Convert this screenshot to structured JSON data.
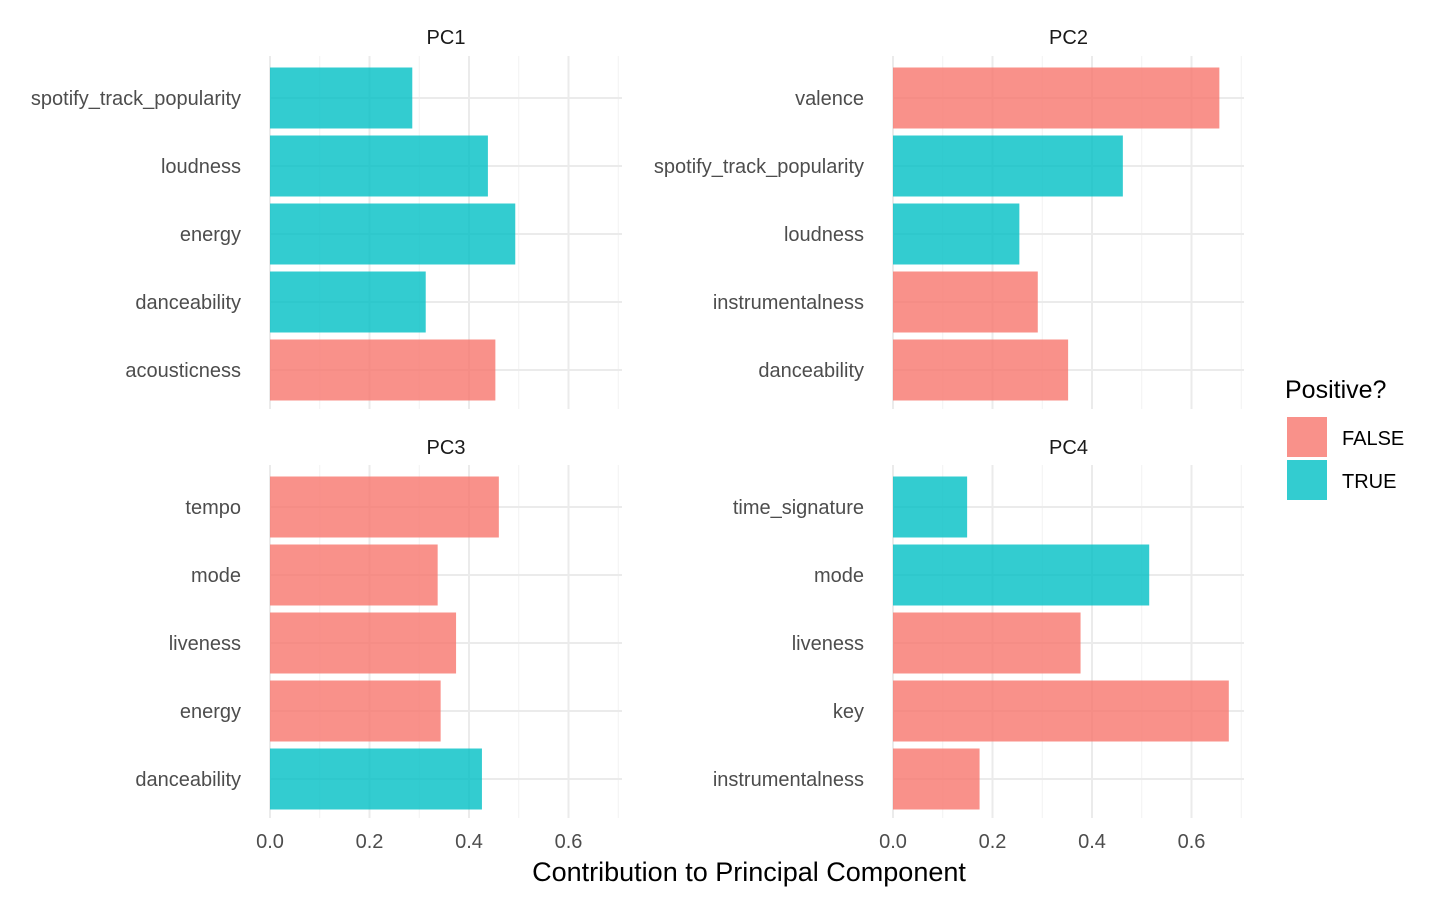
{
  "chart_data": {
    "type": "bar",
    "orientation": "horizontal",
    "xlabel": "Contribution to Principal Component",
    "xlim": [
      0,
      0.7
    ],
    "x_ticks": [
      "0.0",
      "0.2",
      "0.4",
      "0.6"
    ],
    "x_tick_values": [
      0,
      0.2,
      0.4,
      0.6
    ],
    "grid": true,
    "legend": {
      "title": "Positive?",
      "placement": "right",
      "entries": [
        {
          "key": "FALSE",
          "label": "FALSE",
          "color": "#F8766D"
        },
        {
          "key": "TRUE",
          "label": "TRUE",
          "color": "#00BFC4"
        }
      ]
    },
    "facets": [
      {
        "title": "PC1",
        "categories": [
          "spotify_track_popularity",
          "loudness",
          "energy",
          "danceability",
          "acousticness"
        ],
        "values": [
          0.286,
          0.438,
          0.493,
          0.313,
          0.453
        ],
        "positive": [
          "TRUE",
          "TRUE",
          "TRUE",
          "TRUE",
          "FALSE"
        ]
      },
      {
        "title": "PC2",
        "categories": [
          "valence",
          "spotify_track_popularity",
          "loudness",
          "instrumentalness",
          "danceability"
        ],
        "values": [
          0.656,
          0.462,
          0.254,
          0.291,
          0.352
        ],
        "positive": [
          "FALSE",
          "TRUE",
          "TRUE",
          "FALSE",
          "FALSE"
        ]
      },
      {
        "title": "PC3",
        "categories": [
          "tempo",
          "mode",
          "liveness",
          "energy",
          "danceability"
        ],
        "values": [
          0.46,
          0.337,
          0.374,
          0.343,
          0.426
        ],
        "positive": [
          "FALSE",
          "FALSE",
          "FALSE",
          "FALSE",
          "TRUE"
        ]
      },
      {
        "title": "PC4",
        "categories": [
          "time_signature",
          "mode",
          "liveness",
          "key",
          "instrumentalness"
        ],
        "values": [
          0.149,
          0.515,
          0.377,
          0.675,
          0.174
        ],
        "positive": [
          "TRUE",
          "TRUE",
          "FALSE",
          "FALSE",
          "FALSE"
        ]
      }
    ]
  }
}
